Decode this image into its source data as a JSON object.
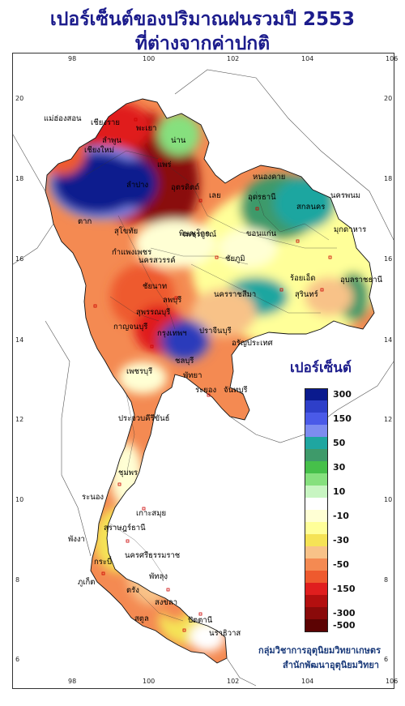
{
  "title": {
    "line1": "เปอร์เซ็นต์ของปริมาณฝนรวมปี  2553",
    "line2": "ที่ต่างจากค่าปกติ"
  },
  "axes": {
    "x_ticks": [
      "98",
      "100",
      "102",
      "104",
      "106"
    ],
    "y_ticks": [
      "20",
      "18",
      "16",
      "14",
      "12",
      "10",
      "8",
      "6"
    ]
  },
  "legend": {
    "title": "เปอร์เซ็นต์",
    "items": [
      {
        "label": "300",
        "color": "#0a1a8e"
      },
      {
        "label": "",
        "color": "#2e3fc9"
      },
      {
        "label": "150",
        "color": "#4a5ae8"
      },
      {
        "label": "",
        "color": "#7d8cf0"
      },
      {
        "label": "50",
        "color": "#1fa6a0"
      },
      {
        "label": "",
        "color": "#3e9a6a"
      },
      {
        "label": "30",
        "color": "#46c04a"
      },
      {
        "label": "",
        "color": "#86e07e"
      },
      {
        "label": "10",
        "color": "#c8f5c2"
      },
      {
        "label": "",
        "color": "#ffffff"
      },
      {
        "label": "-10",
        "color": "#ffffd4"
      },
      {
        "label": "",
        "color": "#ffff99"
      },
      {
        "label": "-30",
        "color": "#f5e356"
      },
      {
        "label": "",
        "color": "#f8c288"
      },
      {
        "label": "-50",
        "color": "#f48a52"
      },
      {
        "label": "",
        "color": "#ee5a2e"
      },
      {
        "label": "-150",
        "color": "#e01e1e"
      },
      {
        "label": "",
        "color": "#b30f0f"
      },
      {
        "label": "-300",
        "color": "#8a0a0a"
      },
      {
        "label": "-500",
        "color": "#5c0303"
      }
    ]
  },
  "provinces": [
    {
      "name": "เชียงราย",
      "color": "#000"
    },
    {
      "name": "แม่ฮ่องสอน"
    },
    {
      "name": "เชียงใหม่"
    },
    {
      "name": "ลำพูน"
    },
    {
      "name": "พะเยา"
    },
    {
      "name": "น่าน"
    },
    {
      "name": "แพร่"
    },
    {
      "name": "ลำปาง"
    },
    {
      "name": "อุตรดิตถ์"
    },
    {
      "name": "ตาก"
    },
    {
      "name": "สุโขทัย"
    },
    {
      "name": "พิษณุโลก"
    },
    {
      "name": "กำแพงเพชร"
    },
    {
      "name": "เลย"
    },
    {
      "name": "หนองคาย"
    },
    {
      "name": "อุดรธานี"
    },
    {
      "name": "สกลนคร"
    },
    {
      "name": "นครพนม"
    },
    {
      "name": "มุกดาหาร"
    },
    {
      "name": "ขอนแก่น"
    },
    {
      "name": "เพชรบูรณ์"
    },
    {
      "name": "นครสวรรค์"
    },
    {
      "name": "ชัยภูมิ"
    },
    {
      "name": "อุบลราชธานี"
    },
    {
      "name": "ร้อยเอ็ด"
    },
    {
      "name": "สุรินทร์"
    },
    {
      "name": "นครราชสีมา"
    },
    {
      "name": "ชัยนาท"
    },
    {
      "name": "ลพบุรี"
    },
    {
      "name": "สุพรรณบุรี"
    },
    {
      "name": "กาญจนบุรี"
    },
    {
      "name": "กรุงเทพฯ"
    },
    {
      "name": "ปราจีนบุรี"
    },
    {
      "name": "อรัญประเทศ"
    },
    {
      "name": "ชลบุรี"
    },
    {
      "name": "พัทยา"
    },
    {
      "name": "ระยอง"
    },
    {
      "name": "จันทบุรี"
    },
    {
      "name": "เพชรบุรี"
    },
    {
      "name": "ประจวบคีรีขันธ์"
    },
    {
      "name": "ชุมพร"
    },
    {
      "name": "ระนอง"
    },
    {
      "name": "เกาะสมุย"
    },
    {
      "name": "สุราษฎร์ธานี"
    },
    {
      "name": "พังงา"
    },
    {
      "name": "ภูเก็ต"
    },
    {
      "name": "นครศรีธรรมราช"
    },
    {
      "name": "กระบี่"
    },
    {
      "name": "ตรัง"
    },
    {
      "name": "สงขลา"
    },
    {
      "name": "พัทลุง"
    },
    {
      "name": "สตูล"
    },
    {
      "name": "ปัตตานี"
    },
    {
      "name": "นราธิวาส"
    }
  ],
  "credits": {
    "line1": "กลุ่มวิชาการอุตุนิยมวิทยาเกษตร",
    "line2": "สำนักพัฒนาอุตุนิยมวิทยา"
  }
}
